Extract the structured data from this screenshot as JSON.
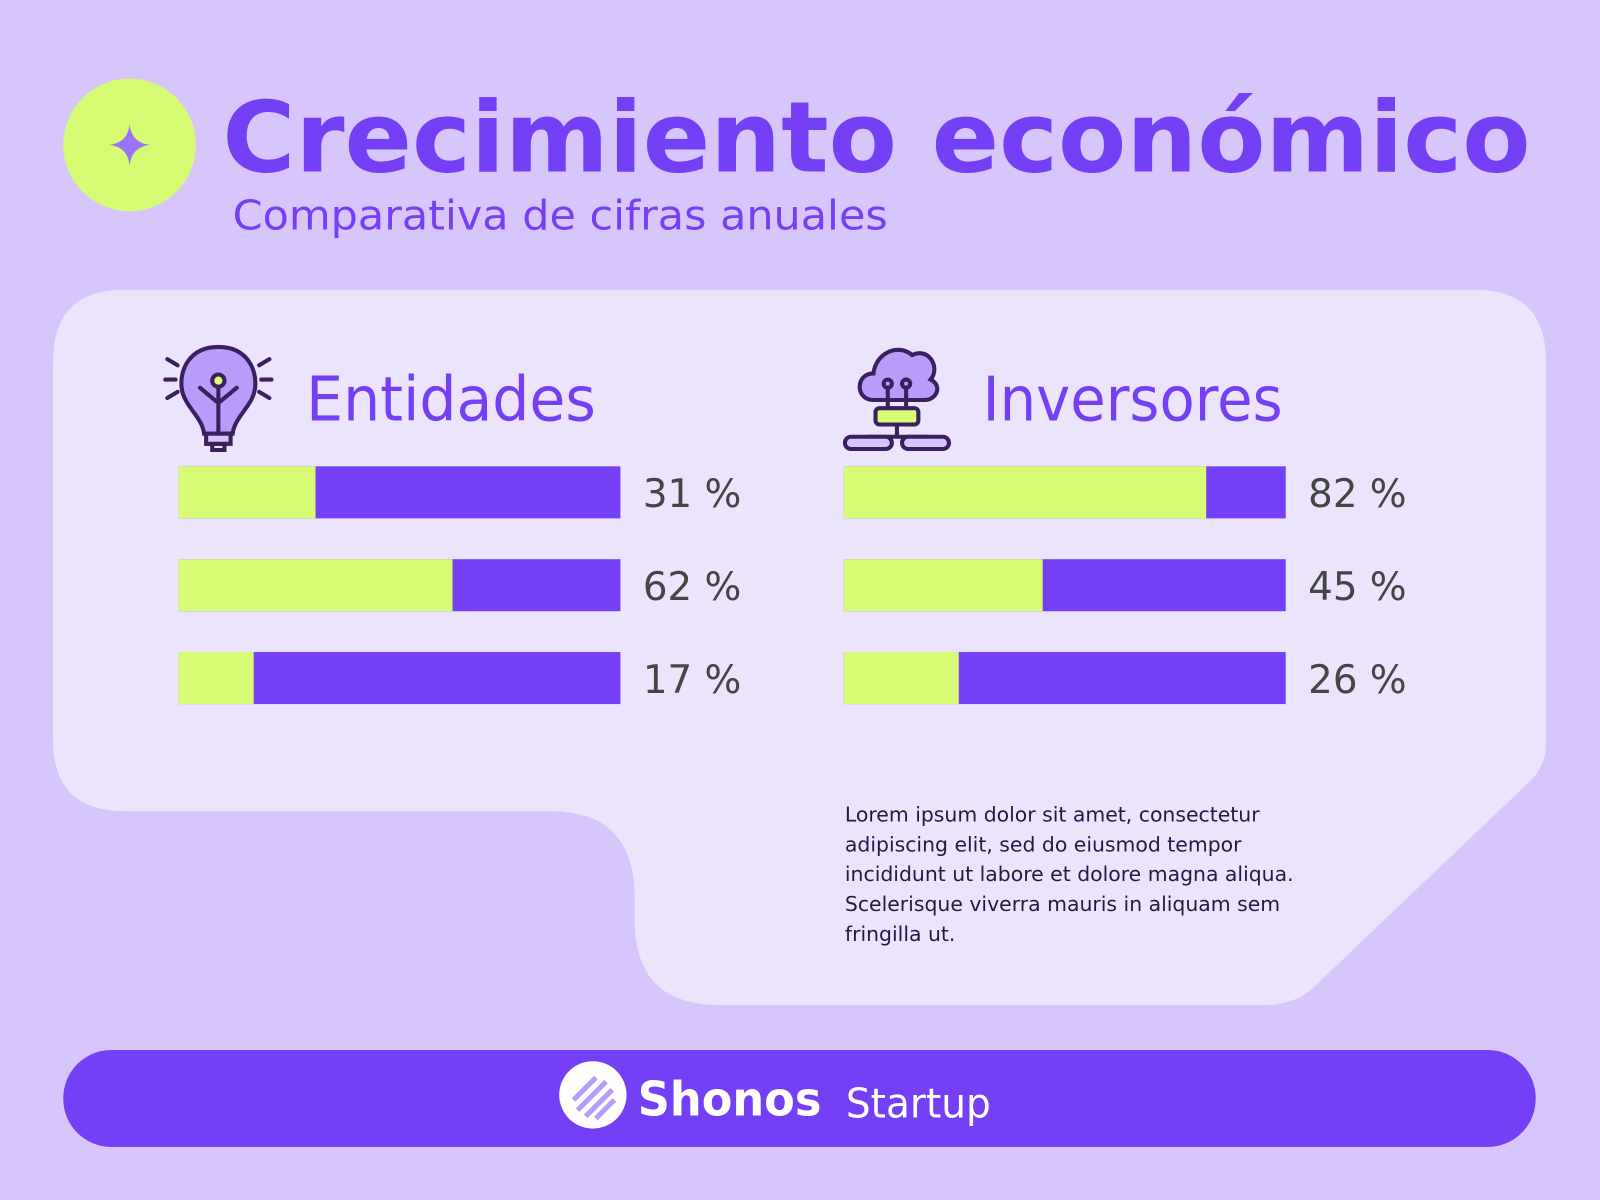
{
  "header": {
    "title": "Crecimiento económico",
    "subtitle": "Comparativa de cifras anuales"
  },
  "chart_data": [
    {
      "type": "bar",
      "orientation": "horizontal",
      "title": "Entidades",
      "values": [
        31,
        62,
        17
      ],
      "value_labels": [
        "31 %",
        "62 %",
        "17 %"
      ],
      "xlim": [
        0,
        100
      ],
      "color": "#d8fb74",
      "track_color": "#7540f5"
    },
    {
      "type": "bar",
      "orientation": "horizontal",
      "title": "Inversores",
      "values": [
        82,
        45,
        26
      ],
      "value_labels": [
        "82 %",
        "45 %",
        "26 %"
      ],
      "xlim": [
        0,
        100
      ],
      "color": "#d8fb74",
      "track_color": "#7540f5"
    }
  ],
  "text_lines": [
    "Lorem ipsum dolor sit amet, consectetur",
    "adipiscing elit, sed do eiusmod tempor",
    "incididunt ut labore et dolore magna aliqua.",
    "Scelerisque viverra mauris in aliquam sem",
    "fringilla ut."
  ],
  "footer": {
    "brand": "Shonos",
    "tagline": "Startup"
  }
}
